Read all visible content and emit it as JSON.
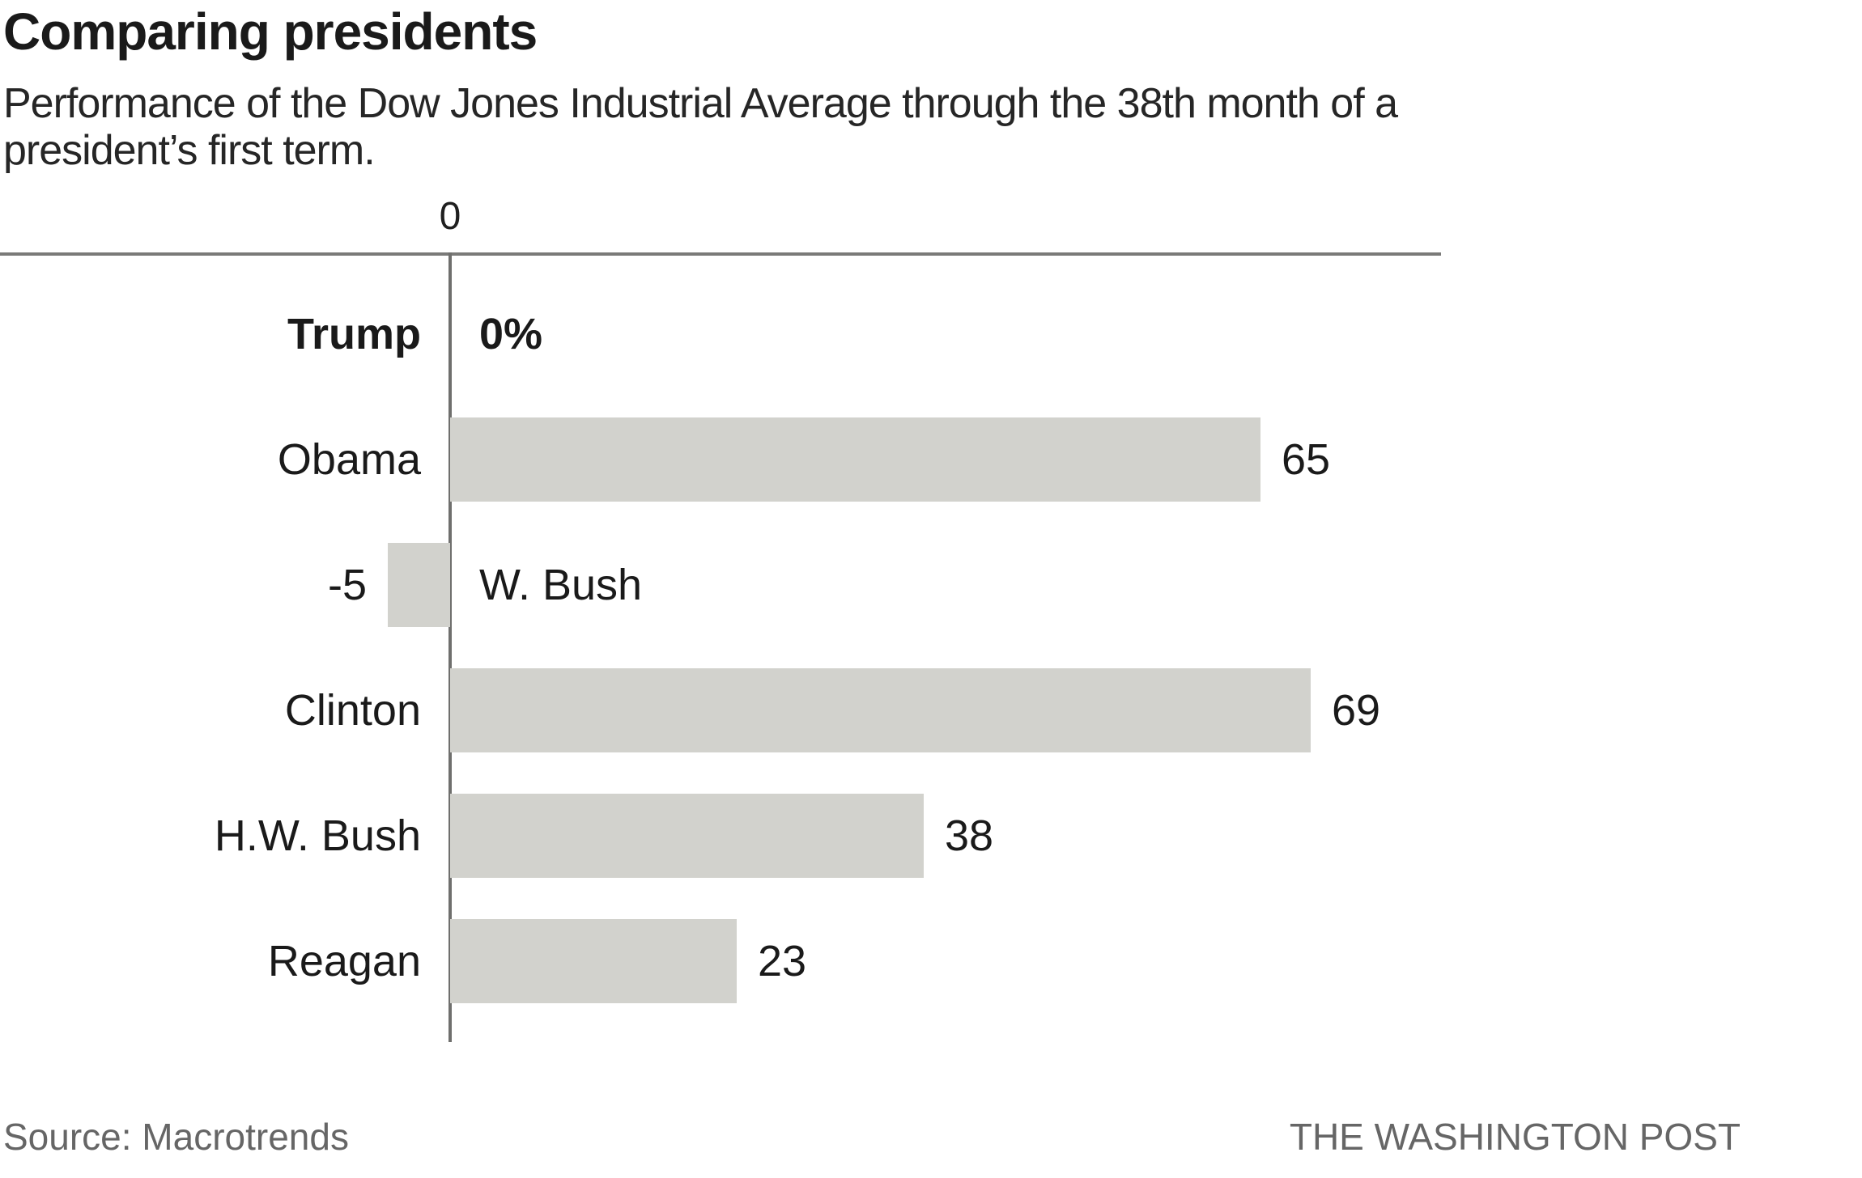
{
  "header": {
    "title": "Comparing presidents",
    "subtitle_line1": "Performance of the Dow Jones Industrial Average through the 38th month of a",
    "subtitle_line2": "president’s first term."
  },
  "axis": {
    "zero_label": "0"
  },
  "chart_data": {
    "type": "bar",
    "orientation": "horizontal",
    "title": "Comparing presidents",
    "subtitle": "Performance of the Dow Jones Industrial Average through the 38th month of a president’s first term.",
    "categories": [
      "Trump",
      "Obama",
      "W. Bush",
      "Clinton",
      "H.W. Bush",
      "Reagan"
    ],
    "values": [
      0,
      65,
      -5,
      69,
      38,
      23
    ],
    "value_labels": [
      "0%",
      "65",
      "-5",
      "69",
      "38",
      "23"
    ],
    "unit": "percent (Dow Jones Industrial Average change)",
    "emphasized_category": "Trump",
    "bar_color": "#d2d2cd",
    "axis_color": "#7a7a78",
    "xlim": [
      -10,
      80
    ],
    "grid": false,
    "legend": false,
    "zero_tick_label": "0"
  },
  "footer": {
    "source": "Source: Macrotrends",
    "publisher": "THE WASHINGTON POST"
  }
}
